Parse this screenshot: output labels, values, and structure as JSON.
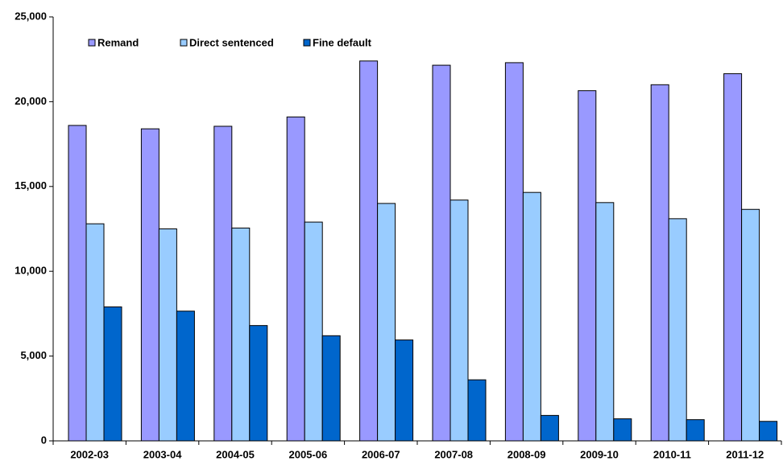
{
  "chart_data": {
    "type": "bar",
    "categories": [
      "2002-03",
      "2003-04",
      "2004-05",
      "2005-06",
      "2006-07",
      "2007-08",
      "2008-09",
      "2009-10",
      "2010-11",
      "2011-12"
    ],
    "series": [
      {
        "name": "Remand",
        "color": "#9999ff",
        "values": [
          18600,
          18400,
          18550,
          19100,
          22400,
          22150,
          22300,
          20650,
          21000,
          21650
        ]
      },
      {
        "name": "Direct sentenced",
        "color": "#99ccff",
        "values": [
          12800,
          12500,
          12550,
          12900,
          14000,
          14200,
          14650,
          14050,
          13100,
          13650
        ]
      },
      {
        "name": "Fine default",
        "color": "#0066cc",
        "values": [
          7900,
          7650,
          6800,
          6200,
          5950,
          3600,
          1500,
          1300,
          1250,
          1150
        ]
      }
    ],
    "ylim": [
      0,
      25000
    ],
    "yticks": [
      0,
      {
        "value": 5000,
        "label": "5,000"
      },
      {
        "value": 10000,
        "label": "10,000"
      },
      {
        "value": 15000,
        "label": "15,000"
      },
      {
        "value": 20000,
        "label": "20,000"
      },
      {
        "value": 25000,
        "label": "25,000"
      }
    ],
    "grid": false,
    "legend": "top-left"
  }
}
